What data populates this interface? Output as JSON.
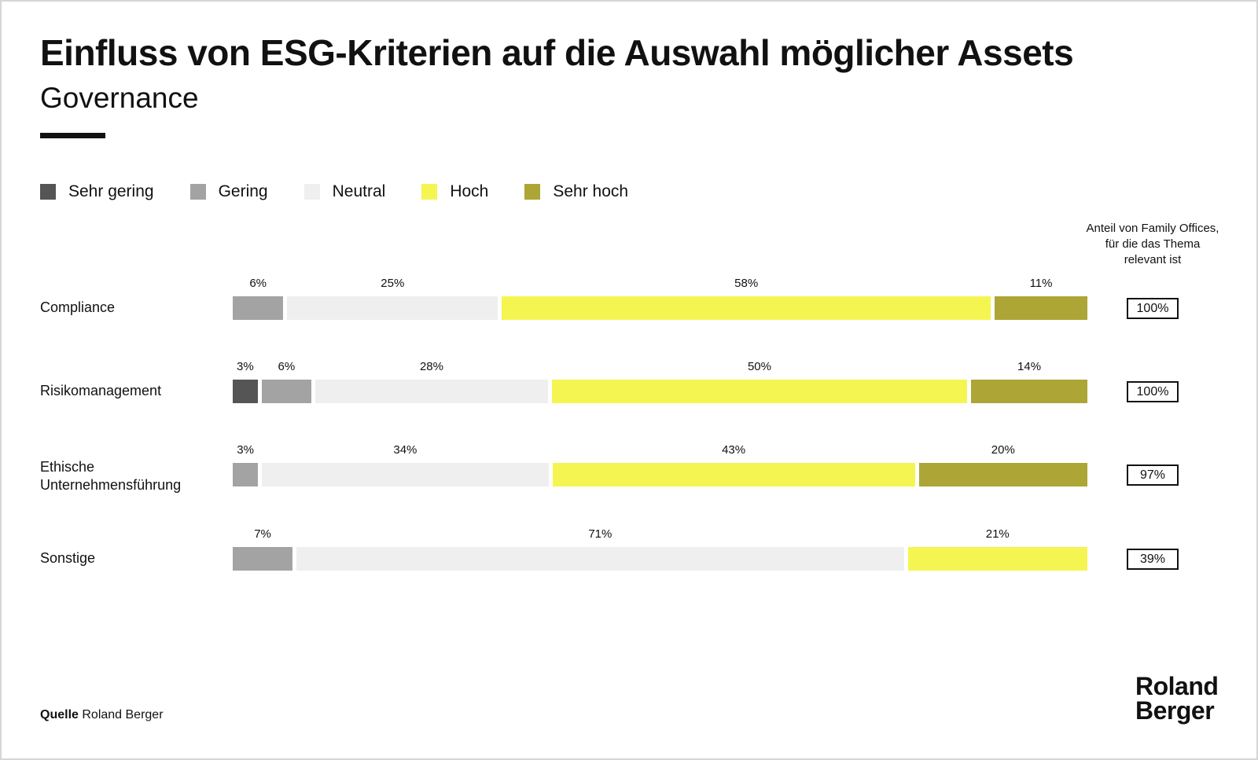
{
  "title": "Einfluss von ESG-Kriterien auf die Auswahl möglicher Assets",
  "subtitle": "Governance",
  "column_header": "Anteil von Family Offices, für die das Thema relevant ist",
  "source_label": "Quelle",
  "source_text": "Roland Berger",
  "logo_lines": [
    "Roland",
    "Berger"
  ],
  "chart_data": {
    "type": "bar",
    "orientation": "horizontal",
    "stacked": true,
    "categories": [
      "Compliance",
      "Risikomanagement",
      "Ethische Unternehmensführung",
      "Sonstige"
    ],
    "legend_position": "top-left",
    "series": [
      {
        "name": "Sehr gering",
        "color": "#555555",
        "values": [
          0,
          3,
          0,
          0
        ]
      },
      {
        "name": "Gering",
        "color": "#a3a3a3",
        "values": [
          6,
          6,
          3,
          7
        ]
      },
      {
        "name": "Neutral",
        "color": "#efefef",
        "values": [
          25,
          28,
          34,
          71
        ]
      },
      {
        "name": "Hoch",
        "color": "#f5f552",
        "values": [
          58,
          50,
          43,
          21
        ]
      },
      {
        "name": "Sehr hoch",
        "color": "#ada536",
        "values": [
          11,
          14,
          20,
          0
        ]
      }
    ],
    "relevant_share": [
      "100%",
      "100%",
      "97%",
      "39%"
    ],
    "value_suffix": "%"
  }
}
